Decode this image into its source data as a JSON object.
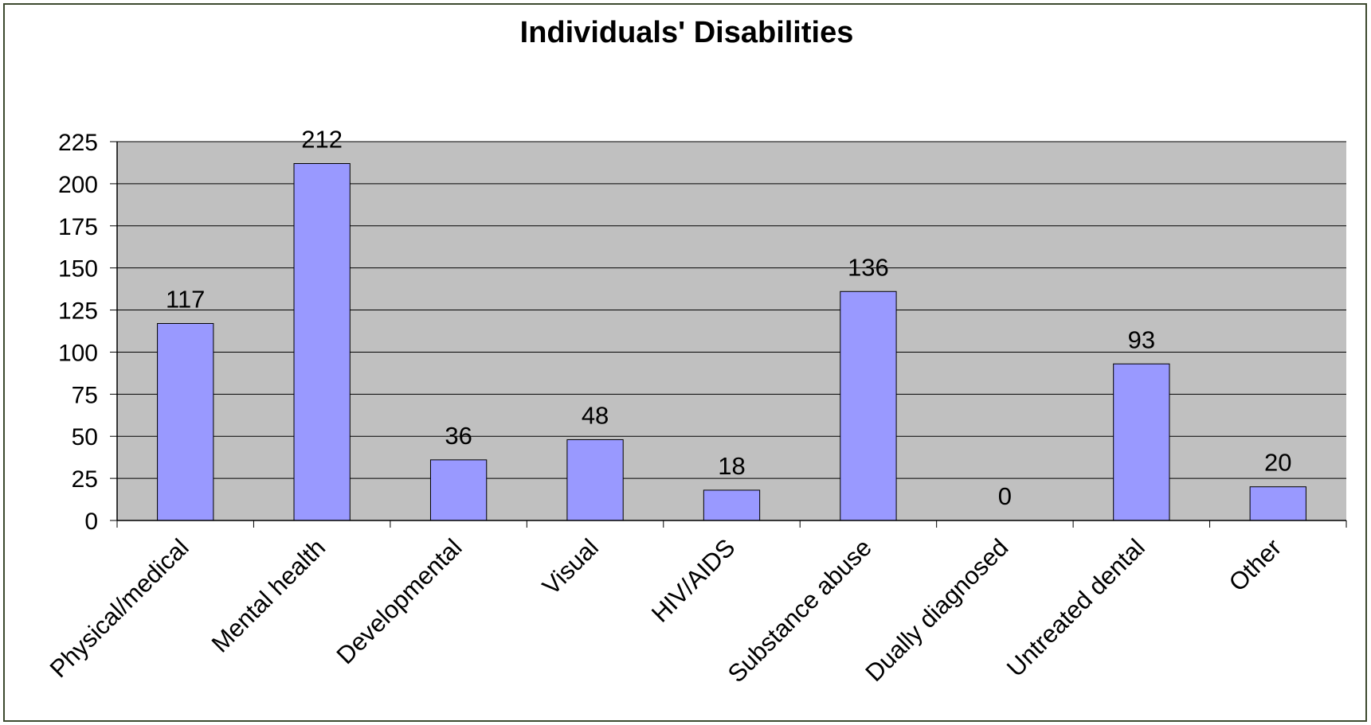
{
  "chart_data": {
    "type": "bar",
    "title": "Individuals' Disabilities",
    "xlabel": "",
    "ylabel": "",
    "categories": [
      "Physical/medical",
      "Mental health",
      "Developmental",
      "Visual",
      "HIV/AIDS",
      "Substance abuse",
      "Dually diagnosed",
      "Untreated dental",
      "Other"
    ],
    "values": [
      117,
      212,
      36,
      48,
      18,
      136,
      0,
      93,
      20
    ],
    "data_labels": [
      "117",
      "212",
      "36",
      "48",
      "18",
      "136",
      "0",
      "93",
      "20"
    ],
    "ylim": [
      0,
      225
    ],
    "yticks": [
      "0",
      "25",
      "50",
      "75",
      "100",
      "125",
      "150",
      "175",
      "200",
      "225"
    ],
    "grid": true,
    "legend": "none",
    "colors": {
      "bar_fill": "#9999ff",
      "bar_stroke": "#000000",
      "plot_background": "#c0c0c0",
      "gridline": "#000000"
    }
  }
}
